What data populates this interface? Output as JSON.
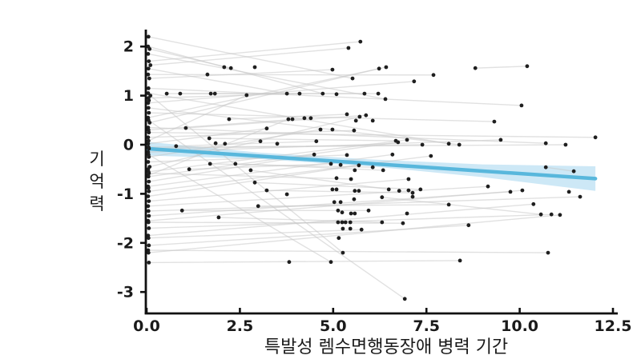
{
  "figure": {
    "background": "#ffffff"
  },
  "chart_data": {
    "type": "scatter",
    "title": "",
    "xlabel": "특발성 렘수면행동장애 병력 기간",
    "ylabel": "기억력",
    "ylabel_chars": [
      "기",
      "억",
      "력"
    ],
    "xlim": [
      0,
      12.6
    ],
    "ylim": [
      -3.4,
      2.4
    ],
    "xticks": [
      0,
      2.5,
      5,
      7.5,
      10,
      12.5
    ],
    "xtick_labels": [
      "0.0",
      "2.5",
      "5.0",
      "7.5",
      "10.0",
      "12.5"
    ],
    "yticks": [
      2,
      1,
      0,
      -1,
      -2,
      -3
    ],
    "ytick_labels": [
      "2",
      "1",
      "0",
      "-1",
      "-2",
      "-3"
    ],
    "grid": false,
    "legend": "none",
    "colors": {
      "point": "#1f1f1f",
      "pair_line": "#c9c9c9",
      "trend_line": "#58b7dc",
      "ci_band": "#c8e6f5",
      "axis": "#111111",
      "text": "#1a1a1a"
    },
    "points": [
      [
        0.05,
        2.2
      ],
      [
        0.04,
        2.0
      ],
      [
        0.08,
        1.95
      ],
      [
        0.04,
        1.85
      ],
      [
        0.06,
        1.7
      ],
      [
        0.1,
        1.62
      ],
      [
        0.05,
        1.55
      ],
      [
        0.04,
        1.43
      ],
      [
        0.07,
        1.35
      ],
      [
        0.05,
        1.15
      ],
      [
        0.04,
        1.05
      ],
      [
        0.1,
        1.0
      ],
      [
        0.05,
        0.95
      ],
      [
        0.06,
        0.9
      ],
      [
        0.04,
        0.85
      ],
      [
        0.05,
        0.75
      ],
      [
        0.06,
        0.65
      ],
      [
        0.04,
        0.55
      ],
      [
        0.05,
        0.5
      ],
      [
        0.08,
        0.45
      ],
      [
        0.04,
        0.35
      ],
      [
        0.05,
        0.3
      ],
      [
        0.06,
        0.25
      ],
      [
        0.04,
        0.15
      ],
      [
        0.05,
        0.08
      ],
      [
        0.04,
        0.02
      ],
      [
        0.05,
        -0.05
      ],
      [
        0.06,
        -0.08
      ],
      [
        0.04,
        -0.15
      ],
      [
        0.05,
        -0.2
      ],
      [
        0.06,
        -0.25
      ],
      [
        0.04,
        -0.35
      ],
      [
        0.08,
        -0.45
      ],
      [
        0.04,
        -0.5
      ],
      [
        0.05,
        -0.55
      ],
      [
        0.06,
        -0.58
      ],
      [
        0.04,
        -0.62
      ],
      [
        0.05,
        -0.65
      ],
      [
        0.06,
        -0.75
      ],
      [
        0.04,
        -0.85
      ],
      [
        0.05,
        -0.88
      ],
      [
        0.06,
        -0.95
      ],
      [
        0.04,
        -1.05
      ],
      [
        0.06,
        -1.15
      ],
      [
        0.04,
        -1.25
      ],
      [
        0.05,
        -1.35
      ],
      [
        0.06,
        -1.45
      ],
      [
        0.04,
        -1.55
      ],
      [
        0.05,
        -1.58
      ],
      [
        0.06,
        -1.7
      ],
      [
        0.04,
        -1.85
      ],
      [
        0.05,
        -1.9
      ],
      [
        0.06,
        -2.05
      ],
      [
        0.04,
        -2.15
      ],
      [
        0.05,
        -2.2
      ],
      [
        0.06,
        -2.4
      ],
      [
        5.73,
        2.1
      ],
      [
        5.41,
        1.97
      ],
      [
        2.08,
        1.58
      ],
      [
        2.26,
        1.56
      ],
      [
        2.9,
        1.58
      ],
      [
        4.98,
        1.53
      ],
      [
        6.23,
        1.55
      ],
      [
        6.42,
        1.58
      ],
      [
        1.63,
        1.43
      ],
      [
        7.69,
        1.42
      ],
      [
        5.52,
        1.35
      ],
      [
        7.17,
        1.29
      ],
      [
        8.81,
        1.56
      ],
      [
        10.2,
        1.6
      ],
      [
        0.54,
        1.04
      ],
      [
        0.9,
        1.04
      ],
      [
        1.72,
        1.04
      ],
      [
        1.83,
        1.04
      ],
      [
        2.68,
        1.01
      ],
      [
        3.76,
        1.04
      ],
      [
        4.1,
        1.04
      ],
      [
        4.72,
        1.04
      ],
      [
        5.09,
        1.03
      ],
      [
        5.84,
        1.04
      ],
      [
        6.21,
        1.04
      ],
      [
        6.4,
        0.93
      ],
      [
        10.05,
        0.8
      ],
      [
        2.21,
        0.52
      ],
      [
        3.8,
        0.52
      ],
      [
        3.91,
        0.52
      ],
      [
        4.23,
        0.54
      ],
      [
        4.4,
        0.54
      ],
      [
        5.37,
        0.62
      ],
      [
        5.71,
        0.57
      ],
      [
        5.88,
        0.6
      ],
      [
        5.61,
        0.49
      ],
      [
        6.06,
        0.49
      ],
      [
        9.32,
        0.47
      ],
      [
        1.05,
        0.34
      ],
      [
        3.22,
        0.33
      ],
      [
        4.66,
        0.31
      ],
      [
        4.98,
        0.31
      ],
      [
        5.56,
        0.29
      ],
      [
        12.03,
        0.15
      ],
      [
        1.68,
        0.13
      ],
      [
        3.05,
        0.07
      ],
      [
        6.98,
        0.1
      ],
      [
        9.49,
        0.1
      ],
      [
        0.79,
        -0.03
      ],
      [
        1.85,
        0.03
      ],
      [
        2.1,
        0.02
      ],
      [
        3.5,
        0.02
      ],
      [
        4.55,
        0.07
      ],
      [
        6.68,
        0.08
      ],
      [
        6.74,
        0.05
      ],
      [
        7.39,
        0.0
      ],
      [
        8.1,
        0.02
      ],
      [
        8.38,
        0.0
      ],
      [
        10.7,
        0.03
      ],
      [
        11.23,
        0.0
      ],
      [
        4.49,
        -0.2
      ],
      [
        5.37,
        -0.21
      ],
      [
        6.59,
        -0.2
      ],
      [
        7.62,
        -0.23
      ],
      [
        1.14,
        -0.5
      ],
      [
        1.7,
        -0.39
      ],
      [
        2.38,
        -0.39
      ],
      [
        2.79,
        -0.52
      ],
      [
        4.94,
        -0.39
      ],
      [
        5.2,
        -0.41
      ],
      [
        5.69,
        -0.42
      ],
      [
        6.06,
        -0.46
      ],
      [
        6.34,
        -0.52
      ],
      [
        5.58,
        -0.52
      ],
      [
        10.7,
        -0.46
      ],
      [
        11.45,
        -0.54
      ],
      [
        5.09,
        -0.68
      ],
      [
        5.48,
        -0.7
      ],
      [
        7.02,
        -0.7
      ],
      [
        2.9,
        -0.77
      ],
      [
        9.15,
        -0.85
      ],
      [
        3.22,
        -0.93
      ],
      [
        4.98,
        -0.91
      ],
      [
        5.09,
        -0.91
      ],
      [
        5.58,
        -0.94
      ],
      [
        5.69,
        -0.94
      ],
      [
        6.49,
        -0.91
      ],
      [
        6.77,
        -0.94
      ],
      [
        7.02,
        -0.93
      ],
      [
        7.13,
        -0.98
      ],
      [
        7.34,
        -0.91
      ],
      [
        9.75,
        -0.96
      ],
      [
        10.07,
        -0.93
      ],
      [
        11.32,
        -0.96
      ],
      [
        3.76,
        -1.01
      ],
      [
        5.56,
        -1.11
      ],
      [
        7.13,
        -1.06
      ],
      [
        6.31,
        -1.07
      ],
      [
        11.62,
        -1.06
      ],
      [
        5.03,
        -1.17
      ],
      [
        5.2,
        -1.17
      ],
      [
        8.1,
        -1.22
      ],
      [
        2.99,
        -1.25
      ],
      [
        10.37,
        -1.21
      ],
      [
        0.95,
        -1.34
      ],
      [
        5.13,
        -1.34
      ],
      [
        5.24,
        -1.38
      ],
      [
        5.95,
        -1.34
      ],
      [
        5.48,
        -1.4
      ],
      [
        5.58,
        -1.4
      ],
      [
        6.98,
        -1.4
      ],
      [
        10.57,
        -1.42
      ],
      [
        10.85,
        -1.42
      ],
      [
        11.08,
        -1.43
      ],
      [
        1.93,
        -1.48
      ],
      [
        5.13,
        -1.58
      ],
      [
        5.24,
        -1.58
      ],
      [
        5.33,
        -1.58
      ],
      [
        5.46,
        -1.58
      ],
      [
        6.31,
        -1.58
      ],
      [
        6.87,
        -1.6
      ],
      [
        5.26,
        -1.71
      ],
      [
        5.46,
        -1.71
      ],
      [
        5.76,
        -1.73
      ],
      [
        8.63,
        -1.64
      ],
      [
        5.15,
        -1.9
      ],
      [
        5.26,
        -2.2
      ],
      [
        10.76,
        -2.2
      ],
      [
        3.82,
        -2.39
      ],
      [
        4.94,
        -2.39
      ],
      [
        8.4,
        -2.36
      ],
      [
        6.92,
        -3.14
      ]
    ],
    "pair_lines": [
      [
        0.06,
        1.7,
        5.73,
        2.1
      ],
      [
        0.1,
        1.62,
        5.41,
        1.97
      ],
      [
        0.08,
        1.95,
        2.26,
        1.56
      ],
      [
        0.07,
        1.35,
        4.98,
        1.53
      ],
      [
        0.08,
        0.45,
        6.23,
        1.55
      ],
      [
        0.04,
        0.55,
        6.42,
        1.58
      ],
      [
        0.04,
        1.43,
        7.69,
        1.42
      ],
      [
        0.04,
        0.85,
        7.17,
        1.29
      ],
      [
        0.05,
        1.15,
        10.05,
        0.8
      ],
      [
        0.05,
        2.2,
        5.52,
        1.35
      ],
      [
        0.05,
        2.0,
        4.72,
        1.04
      ],
      [
        0.9,
        1.04,
        5.84,
        1.04
      ],
      [
        0.54,
        1.04,
        6.21,
        1.04
      ],
      [
        0.05,
        0.95,
        4.1,
        1.04
      ],
      [
        0.04,
        1.85,
        6.4,
        0.93
      ],
      [
        8.81,
        1.56,
        10.2,
        1.6
      ],
      [
        0.06,
        0.65,
        9.32,
        0.47
      ],
      [
        0.06,
        0.25,
        12.03,
        0.15
      ],
      [
        0.05,
        -0.05,
        11.23,
        0.0
      ],
      [
        0.04,
        0.35,
        10.7,
        0.03
      ],
      [
        0.04,
        -0.15,
        9.49,
        0.1
      ],
      [
        1.05,
        0.34,
        5.88,
        0.6
      ],
      [
        0.08,
        -0.45,
        5.71,
        0.57
      ],
      [
        0.04,
        0.15,
        5.56,
        0.29
      ],
      [
        0.06,
        -0.25,
        4.66,
        0.31
      ],
      [
        0.04,
        1.05,
        8.1,
        0.02
      ],
      [
        0.05,
        0.75,
        8.38,
        0.0
      ],
      [
        0.05,
        -0.55,
        6.98,
        0.1
      ],
      [
        1.68,
        0.13,
        6.68,
        0.08
      ],
      [
        0.05,
        -0.65,
        6.74,
        0.05
      ],
      [
        0.79,
        -0.03,
        4.55,
        0.07
      ],
      [
        0.06,
        -0.08,
        7.39,
        0.0
      ],
      [
        2.21,
        0.52,
        5.37,
        0.62
      ],
      [
        0.04,
        0.02,
        3.22,
        0.33
      ],
      [
        0.05,
        0.08,
        2.68,
        1.01
      ],
      [
        0.06,
        -0.62,
        3.8,
        0.52
      ],
      [
        0.05,
        0.3,
        4.4,
        0.54
      ],
      [
        0.05,
        1.55,
        3.76,
        1.04
      ],
      [
        0.06,
        -0.75,
        4.49,
        -0.2
      ],
      [
        0.05,
        -0.35,
        5.37,
        -0.21
      ],
      [
        0.04,
        -0.85,
        6.59,
        -0.2
      ],
      [
        0.06,
        -0.95,
        7.62,
        -0.23
      ],
      [
        1.14,
        -0.5,
        4.94,
        -0.39
      ],
      [
        0.04,
        -1.05,
        5.69,
        -0.42
      ],
      [
        1.7,
        -0.39,
        6.06,
        -0.46
      ],
      [
        2.38,
        -0.39,
        6.34,
        -0.52
      ],
      [
        0.06,
        -1.15,
        7.02,
        -0.7
      ],
      [
        0.06,
        -0.58,
        5.48,
        -0.7
      ],
      [
        0.04,
        -1.25,
        9.15,
        -0.85
      ],
      [
        2.79,
        -0.52,
        6.49,
        -0.91
      ],
      [
        0.06,
        -1.45,
        9.75,
        -0.96
      ],
      [
        2.9,
        -0.77,
        7.34,
        -0.91
      ],
      [
        0.04,
        -1.55,
        10.07,
        -0.93
      ],
      [
        10.7,
        -0.46,
        11.45,
        -0.54
      ],
      [
        3.22,
        -0.93,
        7.13,
        -0.98
      ],
      [
        0.04,
        -1.85,
        10.37,
        -1.21
      ],
      [
        2.99,
        -1.25,
        8.1,
        -1.22
      ],
      [
        0.95,
        -1.34,
        5.95,
        -1.34
      ],
      [
        1.93,
        -1.48,
        6.31,
        -1.58
      ],
      [
        0.05,
        -1.58,
        6.87,
        -1.6
      ],
      [
        0.05,
        -1.9,
        5.76,
        -1.73
      ],
      [
        0.06,
        -2.05,
        8.63,
        -1.64
      ],
      [
        0.06,
        -1.7,
        10.85,
        -1.42
      ],
      [
        0.04,
        -2.15,
        10.76,
        -2.2
      ],
      [
        0.06,
        -2.4,
        8.4,
        -2.36
      ],
      [
        0.05,
        0.5,
        6.92,
        -3.14
      ],
      [
        0.1,
        1.0,
        5.26,
        -2.2
      ],
      [
        0.05,
        -0.2,
        4.94,
        -2.39
      ],
      [
        0.05,
        -1.35,
        11.62,
        -1.06
      ],
      [
        0.05,
        -2.2,
        11.08,
        -1.43
      ],
      [
        6.31,
        -1.07,
        10.57,
        -1.42
      ]
    ],
    "trend": {
      "x": [
        0,
        12.03
      ],
      "y": [
        -0.08,
        -0.69
      ]
    },
    "ci_band": {
      "x": [
        0,
        3,
        6,
        9,
        12.03
      ],
      "upper": [
        0.06,
        -0.16,
        -0.3,
        -0.4,
        -0.44
      ],
      "lower": [
        -0.22,
        -0.29,
        -0.44,
        -0.66,
        -0.94
      ]
    }
  }
}
